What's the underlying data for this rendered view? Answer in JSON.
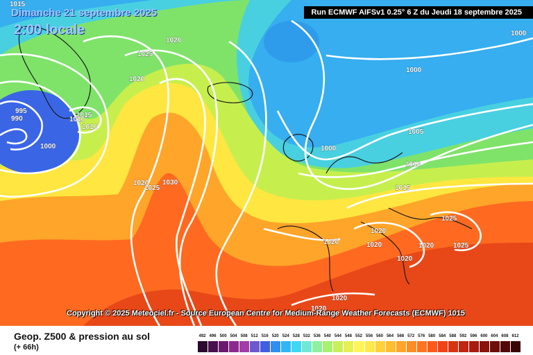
{
  "header": {
    "date": "Dimanche 21 septembre 2025",
    "local_time": "2:00 locale",
    "run": "Run ECMWF AIFSv1 0.25° 6 Z du Jeudi 18 septembre 2025"
  },
  "copyright": "Copyright © 2025 Meteociel.fr - Source European Centre for Medium-Range Weather Forecasts (ECMWF) 1015",
  "footer": {
    "title": "Geop. Z500 & pression au sol",
    "subtitle": "(+ 66h)"
  },
  "colorbar": {
    "labels": [
      "492",
      "496",
      "500",
      "504",
      "508",
      "512",
      "516",
      "520",
      "524",
      "528",
      "532",
      "536",
      "540",
      "544",
      "548",
      "552",
      "556",
      "560",
      "564",
      "568",
      "572",
      "576",
      "580",
      "584",
      "588",
      "592",
      "596",
      "600",
      "604",
      "608",
      "612"
    ],
    "colors": [
      "#2b0a2e",
      "#4a0f4f",
      "#6a1b6f",
      "#8a2a8f",
      "#a23ca6",
      "#6a5acd",
      "#3f5fe0",
      "#2f8ff0",
      "#30b6f5",
      "#3ed8f2",
      "#6fe8d6",
      "#8ff0a0",
      "#a8f070",
      "#c8f05a",
      "#e6f050",
      "#fff45a",
      "#ffe84a",
      "#ffd23a",
      "#ffbe30",
      "#ffa52a",
      "#ff8c25",
      "#ff7420",
      "#ff5a1c",
      "#f04418",
      "#d83414",
      "#c02612",
      "#a81c10",
      "#8a140c",
      "#6e0e08",
      "#520806",
      "#380404"
    ]
  },
  "map_labels": [
    {
      "text": "1015",
      "role": "isobar-label"
    },
    {
      "text": "1020",
      "role": "isobar-label"
    },
    {
      "text": "1025",
      "role": "isobar-label"
    },
    {
      "text": "1020",
      "role": "isobar-label"
    },
    {
      "text": "995",
      "role": "isobar-label"
    },
    {
      "text": "990",
      "role": "isobar-label"
    },
    {
      "text": "1015",
      "role": "isobar-label"
    },
    {
      "text": "1010",
      "role": "isobar-label"
    },
    {
      "text": "1010",
      "role": "isobar-label"
    },
    {
      "text": "1000",
      "role": "isobar-label"
    },
    {
      "text": "1020",
      "role": "isobar-label"
    },
    {
      "text": "1025",
      "role": "isobar-label"
    },
    {
      "text": "1030",
      "role": "isobar-label"
    },
    {
      "text": "1000",
      "role": "isobar-label"
    },
    {
      "text": "1000",
      "role": "isobar-label"
    },
    {
      "text": "1000",
      "role": "isobar-label"
    },
    {
      "text": "1005",
      "role": "isobar-label"
    },
    {
      "text": "1010",
      "role": "isobar-label"
    },
    {
      "text": "1015",
      "role": "isobar-label"
    },
    {
      "text": "1020",
      "role": "isobar-label"
    },
    {
      "text": "1020",
      "role": "isobar-label"
    },
    {
      "text": "1020",
      "role": "isobar-label"
    },
    {
      "text": "1020",
      "role": "isobar-label"
    },
    {
      "text": "1025",
      "role": "isobar-label"
    },
    {
      "text": "1025",
      "role": "isobar-label"
    },
    {
      "text": "1020",
      "role": "isobar-label"
    },
    {
      "text": "1020",
      "role": "isobar-label"
    },
    {
      "text": "1020",
      "role": "isobar-label"
    }
  ]
}
